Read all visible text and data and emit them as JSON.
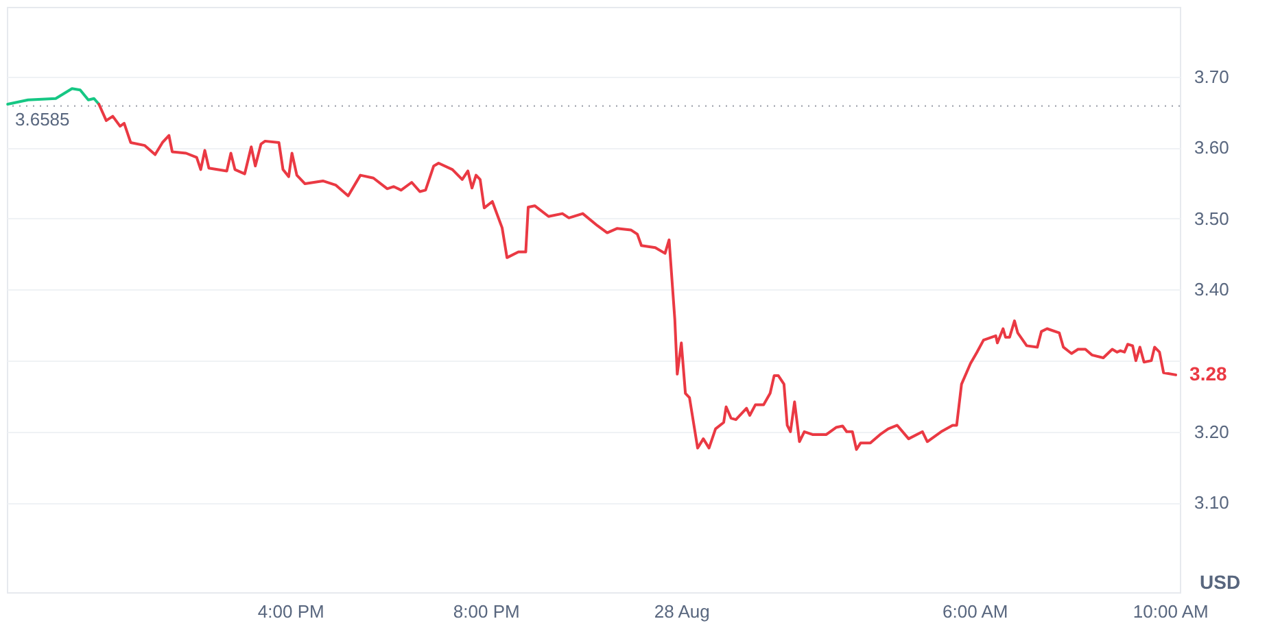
{
  "chart_data": {
    "type": "line",
    "ylabel": "USD",
    "xlim": [
      "--08-27T10:12",
      "--08-28T10:12"
    ],
    "ylim": [
      2.974,
      3.798
    ],
    "xticks": [
      {
        "value": "--08-27T16:00",
        "label": "4:00 PM"
      },
      {
        "value": "--08-27T20:00",
        "label": "8:00 PM"
      },
      {
        "value": "--08-28T00:00",
        "label": "28 Aug"
      },
      {
        "value": "--08-28T06:00",
        "label": "6:00 AM"
      },
      {
        "value": "--08-28T10:00",
        "label": "10:00 AM"
      }
    ],
    "yticks": [
      {
        "value": 3.1,
        "label": "3.10"
      },
      {
        "value": 3.2,
        "label": "3.20"
      },
      {
        "value": 3.3,
        "label": null
      },
      {
        "value": 3.4,
        "label": "3.40"
      },
      {
        "value": 3.5,
        "label": "3.50"
      },
      {
        "value": 3.6,
        "label": "3.60"
      },
      {
        "value": 3.7,
        "label": "3.70"
      }
    ],
    "grid": "y",
    "marker": "none",
    "line_style": "solid",
    "series": [
      {
        "color": "#16c784",
        "x": [
          "--08-27T10:13",
          "--08-27T10:38",
          "--08-27T11:12",
          "--08-27T11:32",
          "--08-27T11:42",
          "--08-27T11:52",
          "--08-27T11:59",
          "--08-27T12:05"
        ],
        "values": [
          3.661,
          3.667,
          3.669,
          3.683,
          3.681,
          3.667,
          3.669,
          3.661
        ]
      },
      {
        "color": "#ea3943",
        "x": [
          "--08-27T12:05",
          "--08-27T12:14",
          "--08-27T12:22",
          "--08-27T12:31",
          "--08-27T12:36",
          "--08-27T12:44",
          "--08-27T13:01",
          "--08-27T13:14",
          "--08-27T13:23",
          "--08-27T13:31",
          "--08-27T13:35",
          "--08-27T13:52",
          "--08-27T14:05",
          "--08-27T14:10",
          "--08-27T14:15",
          "--08-27T14:20",
          "--08-27T14:42",
          "--08-27T14:47",
          "--08-27T14:52",
          "--08-27T15:04",
          "--08-27T15:12",
          "--08-27T15:17",
          "--08-27T15:24",
          "--08-27T15:29",
          "--08-27T15:46",
          "--08-27T15:51",
          "--08-27T15:58",
          "--08-27T16:02",
          "--08-27T16:08",
          "--08-27T16:18",
          "--08-27T16:40",
          "--08-27T16:56",
          "--08-27T17:11",
          "--08-27T17:26",
          "--08-27T17:42",
          "--08-27T17:59",
          "--08-27T18:07",
          "--08-27T18:16",
          "--08-27T18:29",
          "--08-27T18:39",
          "--08-27T18:46",
          "--08-27T18:56",
          "--08-27T19:02",
          "--08-27T19:19",
          "--08-27T19:31",
          "--08-27T19:38",
          "--08-27T19:43",
          "--08-27T19:48",
          "--08-27T19:53",
          "--08-27T19:58",
          "--08-27T20:08",
          "--08-27T20:20",
          "--08-27T20:26",
          "--08-27T20:40",
          "--08-27T20:49",
          "--08-27T20:52",
          "--08-27T21:00",
          "--08-27T21:17",
          "--08-27T21:34",
          "--08-27T21:42",
          "--08-27T21:59",
          "--08-27T22:17",
          "--08-27T22:29",
          "--08-27T22:41",
          "--08-27T22:58",
          "--08-27T23:06",
          "--08-27T23:11",
          "--08-27T23:28",
          "--08-27T23:40",
          "--08-27T23:45",
          "--08-27T23:52",
          "--08-27T23:55",
          "--08-28T00:00",
          "--08-28T00:05",
          "--08-28T00:10",
          "--08-28T00:20",
          "--08-28T00:27",
          "--08-28T00:34",
          "--08-28T00:42",
          "--08-28T00:52",
          "--08-28T00:55",
          "--08-28T01:01",
          "--08-28T01:07",
          "--08-28T01:20",
          "--08-28T01:24",
          "--08-28T01:31",
          "--08-28T01:41",
          "--08-28T01:49",
          "--08-28T01:54",
          "--08-28T01:59",
          "--08-28T02:06",
          "--08-28T02:10",
          "--08-28T02:14",
          "--08-28T02:19",
          "--08-28T02:25",
          "--08-28T02:31",
          "--08-28T02:41",
          "--08-28T02:58",
          "--08-28T03:10",
          "--08-28T03:18",
          "--08-28T03:23",
          "--08-28T03:30",
          "--08-28T03:35",
          "--08-28T03:40",
          "--08-28T03:52",
          "--08-28T04:04",
          "--08-28T04:14",
          "--08-28T04:25",
          "--08-28T04:39",
          "--08-28T04:56",
          "--08-28T05:02",
          "--08-28T05:19",
          "--08-28T05:33",
          "--08-28T05:38",
          "--08-28T05:44",
          "--08-28T05:55",
          "--08-28T06:03",
          "--08-28T06:11",
          "--08-28T06:26",
          "--08-28T06:28",
          "--08-28T06:35",
          "--08-28T06:38",
          "--08-28T06:43",
          "--08-28T06:49",
          "--08-28T06:53",
          "--08-28T07:04",
          "--08-28T07:17",
          "--08-28T07:22",
          "--08-28T07:29",
          "--08-28T07:44",
          "--08-28T07:49",
          "--08-28T07:59",
          "--08-28T08:07",
          "--08-28T08:16",
          "--08-28T08:24",
          "--08-28T08:38",
          "--08-28T08:49",
          "--08-28T08:55",
          "--08-28T08:59",
          "--08-28T09:04",
          "--08-28T09:08",
          "--08-28T09:14",
          "--08-28T09:18",
          "--08-28T09:23",
          "--08-28T09:28",
          "--08-28T09:37",
          "--08-28T09:41",
          "--08-28T09:47",
          "--08-28T09:52",
          "--08-28T10:07"
        ],
        "values": [
          3.661,
          3.638,
          3.644,
          3.63,
          3.634,
          3.607,
          3.603,
          3.59,
          3.607,
          3.617,
          3.594,
          3.592,
          3.586,
          3.569,
          3.596,
          3.571,
          3.567,
          3.592,
          3.569,
          3.563,
          3.601,
          3.574,
          3.605,
          3.609,
          3.607,
          3.569,
          3.559,
          3.592,
          3.561,
          3.549,
          3.553,
          3.547,
          3.532,
          3.561,
          3.557,
          3.542,
          3.545,
          3.54,
          3.551,
          3.538,
          3.54,
          3.574,
          3.578,
          3.569,
          3.555,
          3.567,
          3.543,
          3.561,
          3.555,
          3.515,
          3.524,
          3.487,
          3.445,
          3.453,
          3.453,
          3.516,
          3.518,
          3.503,
          3.507,
          3.501,
          3.507,
          3.49,
          3.48,
          3.486,
          3.484,
          3.478,
          3.462,
          3.459,
          3.451,
          3.47,
          3.358,
          3.281,
          3.325,
          3.254,
          3.248,
          3.177,
          3.19,
          3.177,
          3.204,
          3.213,
          3.235,
          3.219,
          3.217,
          3.233,
          3.223,
          3.238,
          3.238,
          3.254,
          3.279,
          3.279,
          3.267,
          3.209,
          3.2,
          3.242,
          3.186,
          3.2,
          3.196,
          3.196,
          3.206,
          3.208,
          3.2,
          3.2,
          3.175,
          3.184,
          3.184,
          3.196,
          3.204,
          3.209,
          3.19,
          3.2,
          3.186,
          3.2,
          3.209,
          3.209,
          3.267,
          3.296,
          3.312,
          3.329,
          3.335,
          3.325,
          3.345,
          3.333,
          3.333,
          3.356,
          3.339,
          3.321,
          3.319,
          3.341,
          3.345,
          3.339,
          3.319,
          3.31,
          3.316,
          3.316,
          3.308,
          3.304,
          3.316,
          3.312,
          3.314,
          3.312,
          3.323,
          3.321,
          3.3,
          3.319,
          3.298,
          3.3,
          3.319,
          3.312,
          3.283,
          3.28
        ]
      }
    ],
    "ref_lines": [
      {
        "axis": "y",
        "value": 3.6585,
        "label": "3.6585",
        "color": "#a0a4ad",
        "line_style": "dotted"
      }
    ],
    "annotations": [
      {
        "text": "3.28",
        "x": "--08-28T10:07",
        "y": 3.28
      }
    ]
  }
}
